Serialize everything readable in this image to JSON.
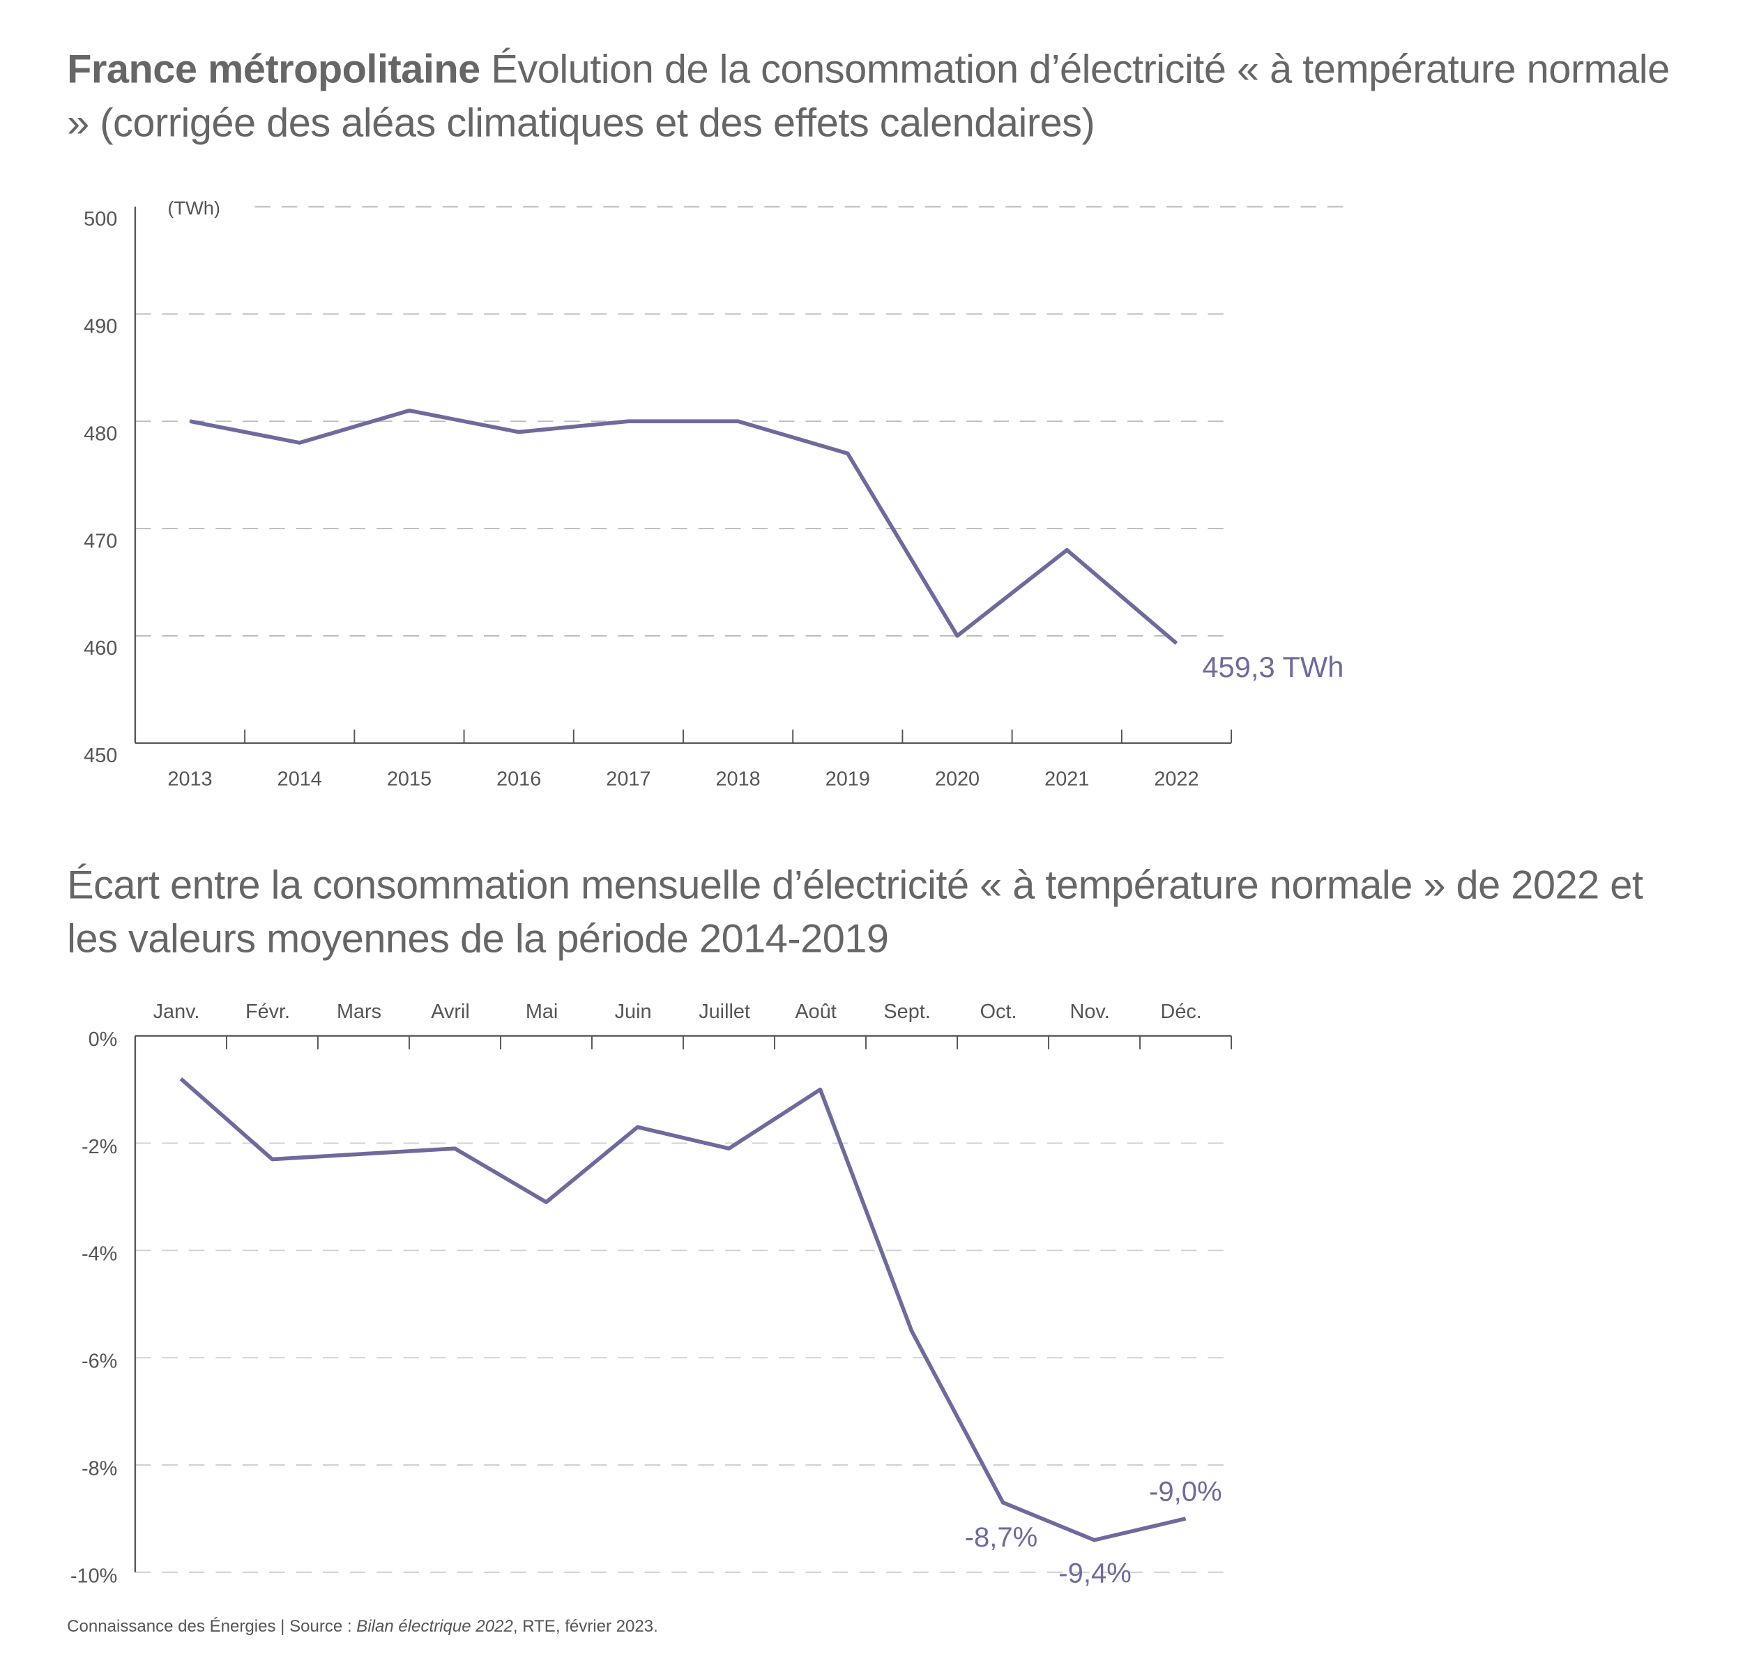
{
  "title1": {
    "bold": "France métropolitaine",
    "rest": "Évolution de la consommation d’électricité « à température normale » (corrigée des aléas climatiques et des effets calendaires)"
  },
  "title2": "Écart entre la consommation mensuelle d’électricité « à température normale » de 2022 et les valeurs moyennes de la période 2014-2019",
  "footer": {
    "prefix": "Connaissance des Énergies | Source : ",
    "italic": "Bilan électrique 2022",
    "suffix": ", RTE, février 2023."
  },
  "colors": {
    "line": "#6e6a9e",
    "text": "#555555",
    "grid": "#bbbbbb"
  },
  "chart_data": [
    {
      "type": "line",
      "title": "Évolution de la consommation d’électricité « à température normale »",
      "ylabel": "(TWh)",
      "ylim": [
        450,
        500
      ],
      "yticks": [
        "450",
        "460",
        "470",
        "480",
        "490",
        "500"
      ],
      "categories": [
        "2013",
        "2014",
        "2015",
        "2016",
        "2017",
        "2018",
        "2019",
        "2020",
        "2021",
        "2022"
      ],
      "values": [
        480,
        478,
        481,
        479,
        480,
        480,
        477,
        460,
        468,
        459.3
      ],
      "annotations": [
        {
          "index": 9,
          "text": "459,3 TWh"
        }
      ],
      "grid": true
    },
    {
      "type": "line",
      "title": "Écart mensuel 2022 vs moyenne 2014-2019",
      "ylim": [
        -10,
        0
      ],
      "yticks": [
        "0%",
        "-2%",
        "-4%",
        "-6%",
        "-8%",
        "-10%"
      ],
      "categories": [
        "Janv.",
        "Févr.",
        "Mars",
        "Avril",
        "Mai",
        "Juin",
        "Juillet",
        "Août",
        "Sept.",
        "Oct.",
        "Nov.",
        "Déc."
      ],
      "values": [
        -0.8,
        -2.3,
        -2.2,
        -2.1,
        -3.1,
        -1.7,
        -2.1,
        -1.0,
        -5.5,
        -8.7,
        -9.4,
        -9.0
      ],
      "annotations": [
        {
          "index": 9,
          "text": "-8,7%"
        },
        {
          "index": 10,
          "text": "-9,4%"
        },
        {
          "index": 11,
          "text": "-9,0%"
        }
      ],
      "grid": true
    }
  ]
}
